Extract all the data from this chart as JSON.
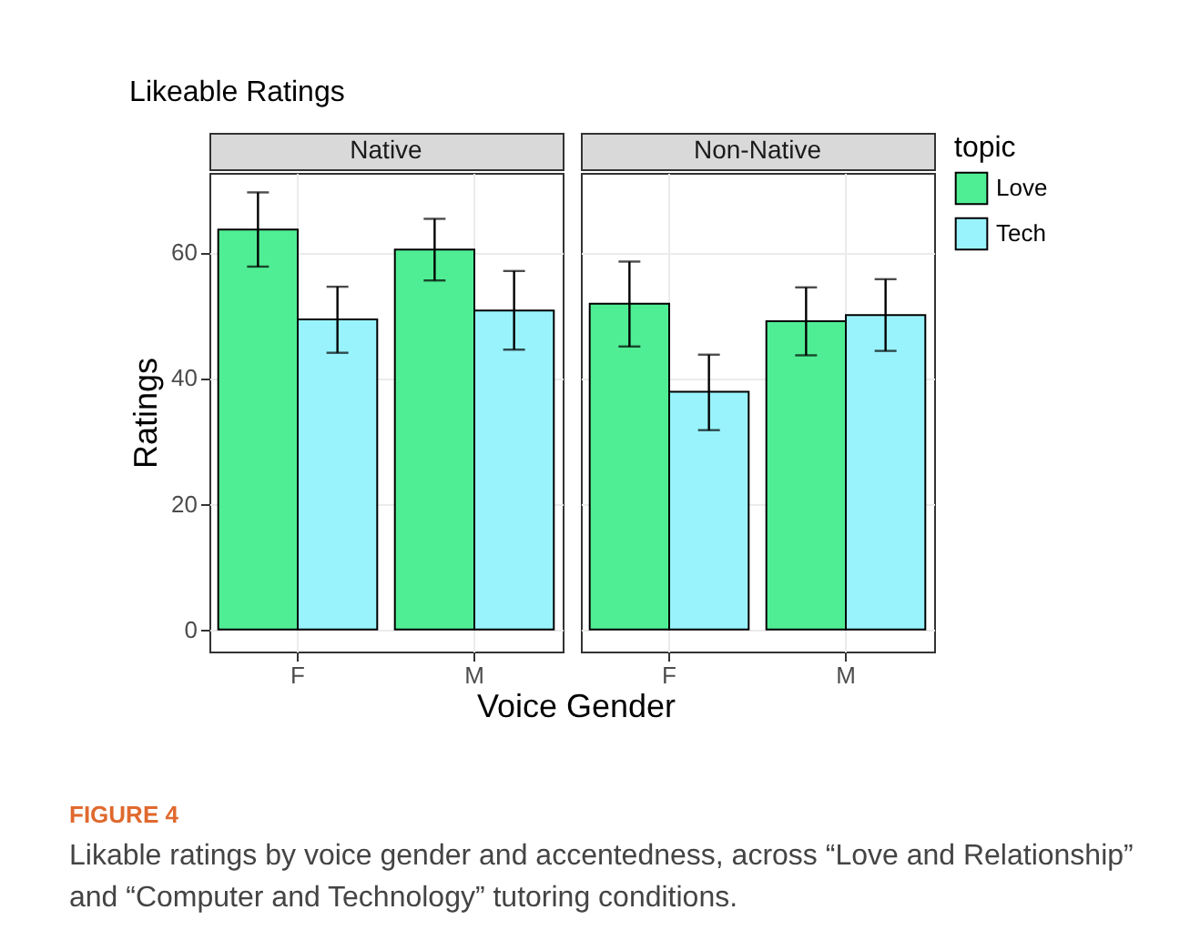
{
  "chart_data": [
    {
      "type": "bar",
      "title": "Likeable Ratings",
      "subtitle": "Native",
      "xlabel": "Voice Gender",
      "ylabel": "Ratings",
      "categories": [
        "F",
        "M"
      ],
      "ylim": [
        -3.5,
        72.6
      ],
      "yticks": [
        0,
        20,
        40,
        60
      ],
      "grid": true,
      "legend": "right",
      "legend_title": "topic",
      "series": [
        {
          "name": "Love",
          "color": "#50ee94",
          "values": [
            63.6,
            60.4
          ],
          "errors": [
            [
              57.7,
              69.5
            ],
            [
              55.5,
              65.3
            ]
          ]
        },
        {
          "name": "Tech",
          "color": "#99f3fc",
          "values": [
            49.3,
            50.7
          ],
          "errors": [
            [
              44.0,
              54.5
            ],
            [
              44.5,
              57.0
            ]
          ]
        }
      ],
      "annotations": [
        "FIGURE 4",
        "Likable ratings by voice gender and accentedness, across “Love and Relationship” and “Computer and Technology” tutoring conditions."
      ]
    },
    {
      "type": "bar",
      "subtitle": "Non-Native",
      "categories": [
        "F",
        "M"
      ],
      "ylim": [
        -3.5,
        72.6
      ],
      "yticks": [
        0,
        20,
        40,
        60
      ],
      "grid": true,
      "tick_labels": "x",
      "series": [
        {
          "name": "Love",
          "color": "#50ee94",
          "values": [
            51.8,
            49.0
          ],
          "errors": [
            [
              45.0,
              58.5
            ],
            [
              43.6,
              54.4
            ]
          ]
        },
        {
          "name": "Tech",
          "color": "#99f3fc",
          "values": [
            37.8,
            50.0
          ],
          "errors": [
            [
              31.7,
              43.7
            ],
            [
              44.3,
              55.7
            ]
          ]
        }
      ]
    }
  ]
}
